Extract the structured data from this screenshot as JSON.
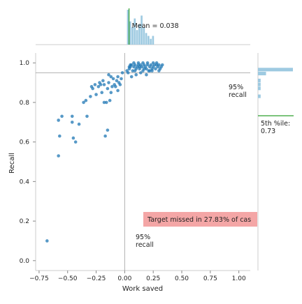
{
  "chart_data": {
    "type": "scatter",
    "xlabel": "Work saved",
    "ylabel": "Recall",
    "xlim": [
      -0.78,
      1.1
    ],
    "ylim": [
      -0.05,
      1.05
    ],
    "x_ticks": [
      "−0.75",
      "−0.50",
      "−0.25",
      "0.00",
      "0.25",
      "0.50",
      "0.75",
      "1.00"
    ],
    "y_ticks": [
      "0.0",
      "0.2",
      "0.4",
      "0.6",
      "0.8",
      "1.0"
    ],
    "x_tick_values": [
      -0.75,
      -0.5,
      -0.25,
      0.0,
      0.25,
      0.5,
      0.75,
      1.0
    ],
    "y_tick_values": [
      0.0,
      0.2,
      0.4,
      0.6,
      0.8,
      1.0
    ],
    "recall_line_y": 0.95,
    "zero_line_x": 0.0,
    "mean_work_saved": 0.038,
    "recall_5th_percentile": 0.73,
    "colors": {
      "points": "#1f77b4",
      "hist": "#9ecae1",
      "mean_line": "#2ca02c",
      "p5_line": "#2ca02c",
      "miss_box": "#f4a6a6",
      "ref_line": "#b0b0b0"
    },
    "points": [
      [
        -0.68,
        0.1
      ],
      [
        -0.58,
        0.53
      ],
      [
        -0.58,
        0.71
      ],
      [
        -0.55,
        0.73
      ],
      [
        -0.57,
        0.63
      ],
      [
        -0.46,
        0.73
      ],
      [
        -0.46,
        0.7
      ],
      [
        -0.45,
        0.62
      ],
      [
        -0.43,
        0.6
      ],
      [
        -0.4,
        0.69
      ],
      [
        -0.36,
        0.8
      ],
      [
        -0.34,
        0.81
      ],
      [
        -0.33,
        0.73
      ],
      [
        -0.3,
        0.83
      ],
      [
        -0.29,
        0.88
      ],
      [
        -0.28,
        0.87
      ],
      [
        -0.26,
        0.89
      ],
      [
        -0.25,
        0.84
      ],
      [
        -0.23,
        0.88
      ],
      [
        -0.22,
        0.9
      ],
      [
        -0.21,
        0.89
      ],
      [
        -0.2,
        0.85
      ],
      [
        -0.19,
        0.91
      ],
      [
        -0.18,
        0.8
      ],
      [
        -0.18,
        0.89
      ],
      [
        -0.17,
        0.63
      ],
      [
        -0.16,
        0.8
      ],
      [
        -0.15,
        0.87
      ],
      [
        -0.15,
        0.66
      ],
      [
        -0.14,
        0.9
      ],
      [
        -0.13,
        0.81
      ],
      [
        -0.12,
        0.85
      ],
      [
        -0.11,
        0.88
      ],
      [
        -0.1,
        0.92
      ],
      [
        -0.09,
        0.89
      ],
      [
        -0.08,
        0.88
      ],
      [
        -0.07,
        0.91
      ],
      [
        -0.06,
        0.93
      ],
      [
        -0.05,
        0.9
      ],
      [
        -0.04,
        0.89
      ],
      [
        -0.03,
        0.92
      ],
      [
        -0.02,
        0.95
      ],
      [
        -0.06,
        0.86
      ],
      [
        -0.12,
        0.93
      ],
      [
        -0.14,
        0.94
      ],
      [
        0.02,
        0.96
      ],
      [
        0.03,
        0.95
      ],
      [
        0.04,
        0.97
      ],
      [
        0.05,
        0.98
      ],
      [
        0.06,
        0.99
      ],
      [
        0.07,
        0.96
      ],
      [
        0.08,
        0.98
      ],
      [
        0.09,
        0.99
      ],
      [
        0.1,
        0.97
      ],
      [
        0.11,
        0.98
      ],
      [
        0.12,
        0.99
      ],
      [
        0.13,
        0.97
      ],
      [
        0.14,
        0.99
      ],
      [
        0.15,
        0.98
      ],
      [
        0.16,
        0.96
      ],
      [
        0.17,
        0.99
      ],
      [
        0.18,
        0.98
      ],
      [
        0.19,
        0.97
      ],
      [
        0.2,
        0.99
      ],
      [
        0.21,
        0.96
      ],
      [
        0.22,
        0.98
      ],
      [
        0.23,
        0.99
      ],
      [
        0.24,
        0.97
      ],
      [
        0.25,
        0.98
      ],
      [
        0.26,
        0.99
      ],
      [
        0.27,
        0.97
      ],
      [
        0.28,
        0.99
      ],
      [
        0.29,
        0.98
      ],
      [
        0.3,
        0.99
      ],
      [
        0.31,
        0.97
      ],
      [
        0.32,
        0.98
      ],
      [
        0.33,
        0.99
      ],
      [
        0.06,
        0.93
      ],
      [
        0.1,
        0.94
      ],
      [
        0.14,
        0.95
      ],
      [
        0.19,
        0.94
      ],
      [
        0.22,
        0.96
      ],
      [
        0.05,
        0.99
      ],
      [
        0.08,
        1.0
      ],
      [
        0.12,
        1.0
      ],
      [
        0.16,
        1.0
      ],
      [
        0.2,
        1.0
      ],
      [
        0.25,
        1.0
      ],
      [
        0.28,
        1.0
      ],
      [
        0.04,
        0.98
      ],
      [
        0.09,
        0.96
      ],
      [
        0.13,
        0.98
      ],
      [
        0.17,
        0.97
      ],
      [
        0.24,
        0.96
      ],
      [
        0.3,
        0.96
      ]
    ],
    "top_hist": [
      {
        "bin_start": 0.02,
        "bin_end": 0.04,
        "count": 12
      },
      {
        "bin_start": 0.04,
        "bin_end": 0.06,
        "count": 8
      },
      {
        "bin_start": 0.06,
        "bin_end": 0.08,
        "count": 6
      },
      {
        "bin_start": 0.08,
        "bin_end": 0.1,
        "count": 9
      },
      {
        "bin_start": 0.1,
        "bin_end": 0.12,
        "count": 5
      },
      {
        "bin_start": 0.12,
        "bin_end": 0.14,
        "count": 7
      },
      {
        "bin_start": 0.14,
        "bin_end": 0.16,
        "count": 10
      },
      {
        "bin_start": 0.16,
        "bin_end": 0.18,
        "count": 6
      },
      {
        "bin_start": 0.18,
        "bin_end": 0.2,
        "count": 4
      },
      {
        "bin_start": 0.2,
        "bin_end": 0.22,
        "count": 3
      },
      {
        "bin_start": 0.22,
        "bin_end": 0.24,
        "count": 2
      },
      {
        "bin_start": 0.24,
        "bin_end": 0.26,
        "count": 3
      }
    ],
    "right_hist": [
      {
        "bin_start": 0.955,
        "bin_end": 0.975,
        "count": 13
      },
      {
        "bin_start": 0.935,
        "bin_end": 0.955,
        "count": 3
      },
      {
        "bin_start": 0.9,
        "bin_end": 0.92,
        "count": 1
      },
      {
        "bin_start": 0.88,
        "bin_end": 0.9,
        "count": 1
      },
      {
        "bin_start": 0.86,
        "bin_end": 0.88,
        "count": 1
      },
      {
        "bin_start": 0.82,
        "bin_end": 0.84,
        "count": 1
      }
    ],
    "annotations": {
      "mean_label": "Mean = 0.038",
      "recall_right_label": "95%\nrecall",
      "recall_bottom_label": "95%\nrecall",
      "p5_label": "5th %ile:\n0.73",
      "miss_label": "Target missed in 27.83% of cas"
    }
  }
}
